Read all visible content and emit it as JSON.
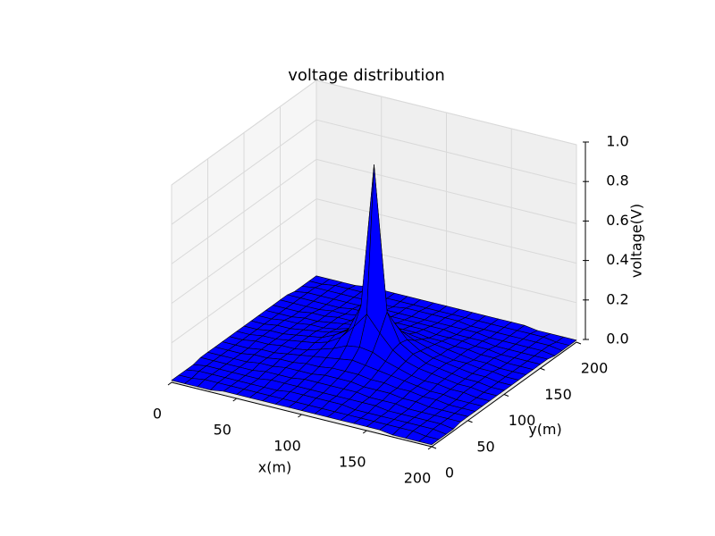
{
  "chart_data": {
    "type": "surface",
    "title": "voltage distribution",
    "xlabel": "x(m)",
    "ylabel": "y(m)",
    "zlabel": "voltage(V)",
    "color": "#0000ff",
    "edgecolor": "#000000",
    "grid": true,
    "xlim": [
      0,
      200
    ],
    "ylim": [
      0,
      200
    ],
    "zlim": [
      0,
      1
    ],
    "xticks": [
      0,
      50,
      100,
      150,
      200
    ],
    "yticks": [
      0,
      50,
      100,
      150,
      200
    ],
    "zticks": [
      {
        "value": 0,
        "label": "0.0"
      },
      0.2,
      0.4,
      0.6,
      0.8,
      {
        "value": 1,
        "label": "1.0"
      }
    ],
    "x": [
      0,
      10,
      20,
      30,
      40,
      50,
      60,
      70,
      80,
      90,
      100,
      110,
      120,
      130,
      140,
      150,
      160,
      170,
      180,
      190,
      200
    ],
    "y": [
      0,
      10,
      20,
      30,
      40,
      50,
      60,
      70,
      80,
      90,
      100,
      110,
      120,
      130,
      140,
      150,
      160,
      170,
      180,
      190,
      200
    ],
    "z": [
      [
        0.01,
        0.01,
        0.01,
        0.01,
        0.02,
        0.02,
        0.02,
        0.02,
        0.02,
        0.02,
        0.02,
        0.02,
        0.02,
        0.02,
        0.02,
        0.02,
        0.02,
        0.01,
        0.01,
        0.01,
        0.01
      ],
      [
        0.01,
        0.01,
        0.02,
        0.02,
        0.02,
        0.02,
        0.02,
        0.02,
        0.02,
        0.02,
        0.02,
        0.02,
        0.02,
        0.02,
        0.02,
        0.02,
        0.02,
        0.02,
        0.02,
        0.01,
        0.01
      ],
      [
        0.01,
        0.02,
        0.02,
        0.02,
        0.02,
        0.02,
        0.02,
        0.02,
        0.03,
        0.03,
        0.03,
        0.03,
        0.03,
        0.02,
        0.02,
        0.02,
        0.02,
        0.02,
        0.02,
        0.02,
        0.01
      ],
      [
        0.01,
        0.02,
        0.02,
        0.02,
        0.02,
        0.02,
        0.03,
        0.03,
        0.03,
        0.03,
        0.03,
        0.03,
        0.03,
        0.03,
        0.03,
        0.02,
        0.02,
        0.02,
        0.02,
        0.02,
        0.01
      ],
      [
        0.02,
        0.02,
        0.02,
        0.02,
        0.02,
        0.03,
        0.03,
        0.03,
        0.04,
        0.04,
        0.04,
        0.04,
        0.04,
        0.03,
        0.03,
        0.03,
        0.02,
        0.02,
        0.02,
        0.02,
        0.02
      ],
      [
        0.02,
        0.02,
        0.02,
        0.02,
        0.03,
        0.03,
        0.04,
        0.04,
        0.04,
        0.05,
        0.05,
        0.05,
        0.04,
        0.04,
        0.04,
        0.03,
        0.03,
        0.02,
        0.02,
        0.02,
        0.02
      ],
      [
        0.02,
        0.02,
        0.02,
        0.03,
        0.03,
        0.04,
        0.04,
        0.05,
        0.05,
        0.06,
        0.06,
        0.06,
        0.05,
        0.05,
        0.04,
        0.04,
        0.03,
        0.03,
        0.02,
        0.02,
        0.02
      ],
      [
        0.02,
        0.02,
        0.02,
        0.03,
        0.03,
        0.04,
        0.05,
        0.06,
        0.07,
        0.08,
        0.09,
        0.08,
        0.07,
        0.06,
        0.05,
        0.04,
        0.03,
        0.03,
        0.02,
        0.02,
        0.02
      ],
      [
        0.02,
        0.02,
        0.03,
        0.03,
        0.04,
        0.04,
        0.05,
        0.07,
        0.09,
        0.12,
        0.13,
        0.12,
        0.09,
        0.07,
        0.05,
        0.04,
        0.04,
        0.03,
        0.03,
        0.02,
        0.02
      ],
      [
        0.02,
        0.02,
        0.03,
        0.03,
        0.04,
        0.05,
        0.06,
        0.08,
        0.12,
        0.19,
        0.27,
        0.19,
        0.12,
        0.08,
        0.06,
        0.05,
        0.04,
        0.03,
        0.03,
        0.02,
        0.02
      ],
      [
        0.02,
        0.02,
        0.03,
        0.03,
        0.04,
        0.05,
        0.06,
        0.09,
        0.13,
        0.27,
        1.0,
        0.27,
        0.13,
        0.09,
        0.06,
        0.05,
        0.04,
        0.03,
        0.03,
        0.02,
        0.02
      ],
      [
        0.02,
        0.02,
        0.03,
        0.03,
        0.04,
        0.05,
        0.06,
        0.08,
        0.12,
        0.19,
        0.27,
        0.19,
        0.12,
        0.08,
        0.06,
        0.05,
        0.04,
        0.03,
        0.03,
        0.02,
        0.02
      ],
      [
        0.02,
        0.02,
        0.03,
        0.03,
        0.04,
        0.04,
        0.05,
        0.07,
        0.09,
        0.12,
        0.13,
        0.12,
        0.09,
        0.07,
        0.05,
        0.04,
        0.04,
        0.03,
        0.03,
        0.02,
        0.02
      ],
      [
        0.02,
        0.02,
        0.02,
        0.03,
        0.03,
        0.04,
        0.05,
        0.06,
        0.07,
        0.08,
        0.09,
        0.08,
        0.07,
        0.06,
        0.05,
        0.04,
        0.03,
        0.03,
        0.02,
        0.02,
        0.02
      ],
      [
        0.02,
        0.02,
        0.02,
        0.03,
        0.03,
        0.04,
        0.04,
        0.05,
        0.05,
        0.06,
        0.06,
        0.06,
        0.05,
        0.05,
        0.04,
        0.04,
        0.03,
        0.03,
        0.02,
        0.02,
        0.02
      ],
      [
        0.02,
        0.02,
        0.02,
        0.02,
        0.03,
        0.03,
        0.04,
        0.04,
        0.04,
        0.05,
        0.05,
        0.05,
        0.04,
        0.04,
        0.04,
        0.03,
        0.03,
        0.02,
        0.02,
        0.02,
        0.02
      ],
      [
        0.02,
        0.02,
        0.02,
        0.02,
        0.02,
        0.03,
        0.03,
        0.03,
        0.04,
        0.04,
        0.04,
        0.04,
        0.04,
        0.03,
        0.03,
        0.03,
        0.02,
        0.02,
        0.02,
        0.02,
        0.02
      ],
      [
        0.01,
        0.02,
        0.02,
        0.02,
        0.02,
        0.02,
        0.03,
        0.03,
        0.03,
        0.03,
        0.03,
        0.03,
        0.03,
        0.03,
        0.03,
        0.02,
        0.02,
        0.02,
        0.02,
        0.02,
        0.01
      ],
      [
        0.01,
        0.02,
        0.02,
        0.02,
        0.02,
        0.02,
        0.02,
        0.02,
        0.03,
        0.03,
        0.03,
        0.03,
        0.03,
        0.02,
        0.02,
        0.02,
        0.02,
        0.02,
        0.02,
        0.02,
        0.01
      ],
      [
        0.01,
        0.01,
        0.02,
        0.02,
        0.02,
        0.02,
        0.02,
        0.02,
        0.02,
        0.02,
        0.02,
        0.02,
        0.02,
        0.02,
        0.02,
        0.02,
        0.02,
        0.02,
        0.02,
        0.01,
        0.01
      ],
      [
        0.01,
        0.01,
        0.01,
        0.01,
        0.02,
        0.02,
        0.02,
        0.02,
        0.02,
        0.02,
        0.02,
        0.02,
        0.02,
        0.02,
        0.02,
        0.02,
        0.02,
        0.01,
        0.01,
        0.01,
        0.01
      ]
    ]
  }
}
